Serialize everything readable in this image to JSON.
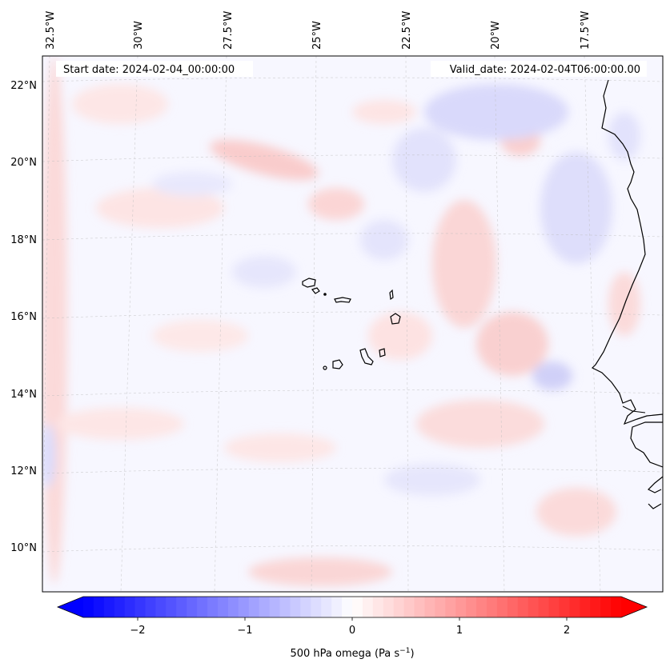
{
  "header": {
    "start_date": "Start date: 2024-02-04_00:00:00",
    "valid_date": "Valid_date: 2024-02-04T06:00:00.00"
  },
  "map": {
    "longitude_labels": [
      "32.5°W",
      "30°W",
      "27.5°W",
      "25°W",
      "22.5°W",
      "20°W",
      "17.5°W"
    ],
    "latitude_labels": [
      "22°N",
      "20°N",
      "18°N",
      "16°N",
      "14°N",
      "12°N",
      "10°N"
    ],
    "field_colors": {
      "background": "#f7f7ff",
      "weak_positive": "#fde8e8",
      "moderate_positive": "#f8c9c9",
      "weak_negative": "#e8e8fd",
      "moderate_negative": "#cdcdf8",
      "coastline": "#000000",
      "gridline": "#bdbdbd"
    }
  },
  "colorbar": {
    "label_text": "500 hPa omega (Pa s",
    "label_superscript": "−1",
    "label_close": ")",
    "tick_labels": [
      "−2",
      "−1",
      "0",
      "1",
      "2"
    ],
    "min": -2.6,
    "max": 2.6,
    "colors": {
      "low": "#0000ff",
      "mid": "#ffffff",
      "high": "#ff0000"
    }
  }
}
